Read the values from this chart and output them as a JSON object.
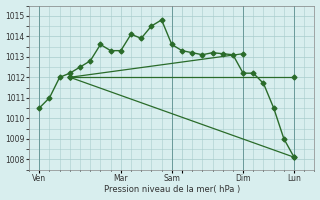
{
  "background_color": "#d8eeee",
  "grid_color": "#a8cccc",
  "line_color": "#2a6b2a",
  "marker_color": "#2a6b2a",
  "xlabel": "Pression niveau de la mer( hPa )",
  "ylim": [
    1007.5,
    1015.5
  ],
  "yticks": [
    1008,
    1009,
    1010,
    1011,
    1012,
    1013,
    1014,
    1015
  ],
  "xlim": [
    0,
    28
  ],
  "xtick_positions": [
    1,
    9,
    14,
    15,
    21,
    26
  ],
  "xtick_labels": [
    "Ven",
    "Mar",
    "Sam",
    "",
    "Dim",
    "Lun"
  ],
  "vline_positions": [
    1,
    14,
    21,
    26
  ],
  "series_main": {
    "x": [
      1,
      2,
      3,
      4,
      5,
      6,
      7,
      8,
      9,
      10,
      11,
      12,
      13,
      14,
      15,
      16,
      17,
      18,
      19,
      20,
      21,
      22,
      23,
      24,
      25,
      26
    ],
    "y": [
      1010.5,
      1011.0,
      1012.0,
      1012.2,
      1012.5,
      1012.8,
      1013.6,
      1013.3,
      1013.3,
      1014.1,
      1013.9,
      1014.5,
      1014.8,
      1013.6,
      1013.3,
      1013.2,
      1013.1,
      1013.2,
      1013.15,
      1013.1,
      1012.2,
      1012.2,
      1011.7,
      1010.5,
      1009.0,
      1008.1
    ]
  },
  "series_trend1": {
    "x": [
      4,
      26
    ],
    "y": [
      1012.0,
      1008.1
    ]
  },
  "series_trend2": {
    "x": [
      4,
      21
    ],
    "y": [
      1012.0,
      1013.15
    ]
  },
  "series_flat": {
    "x": [
      4,
      26
    ],
    "y": [
      1012.0,
      1012.0
    ]
  },
  "anchor_x": 4,
  "anchor_y": 1012.0
}
